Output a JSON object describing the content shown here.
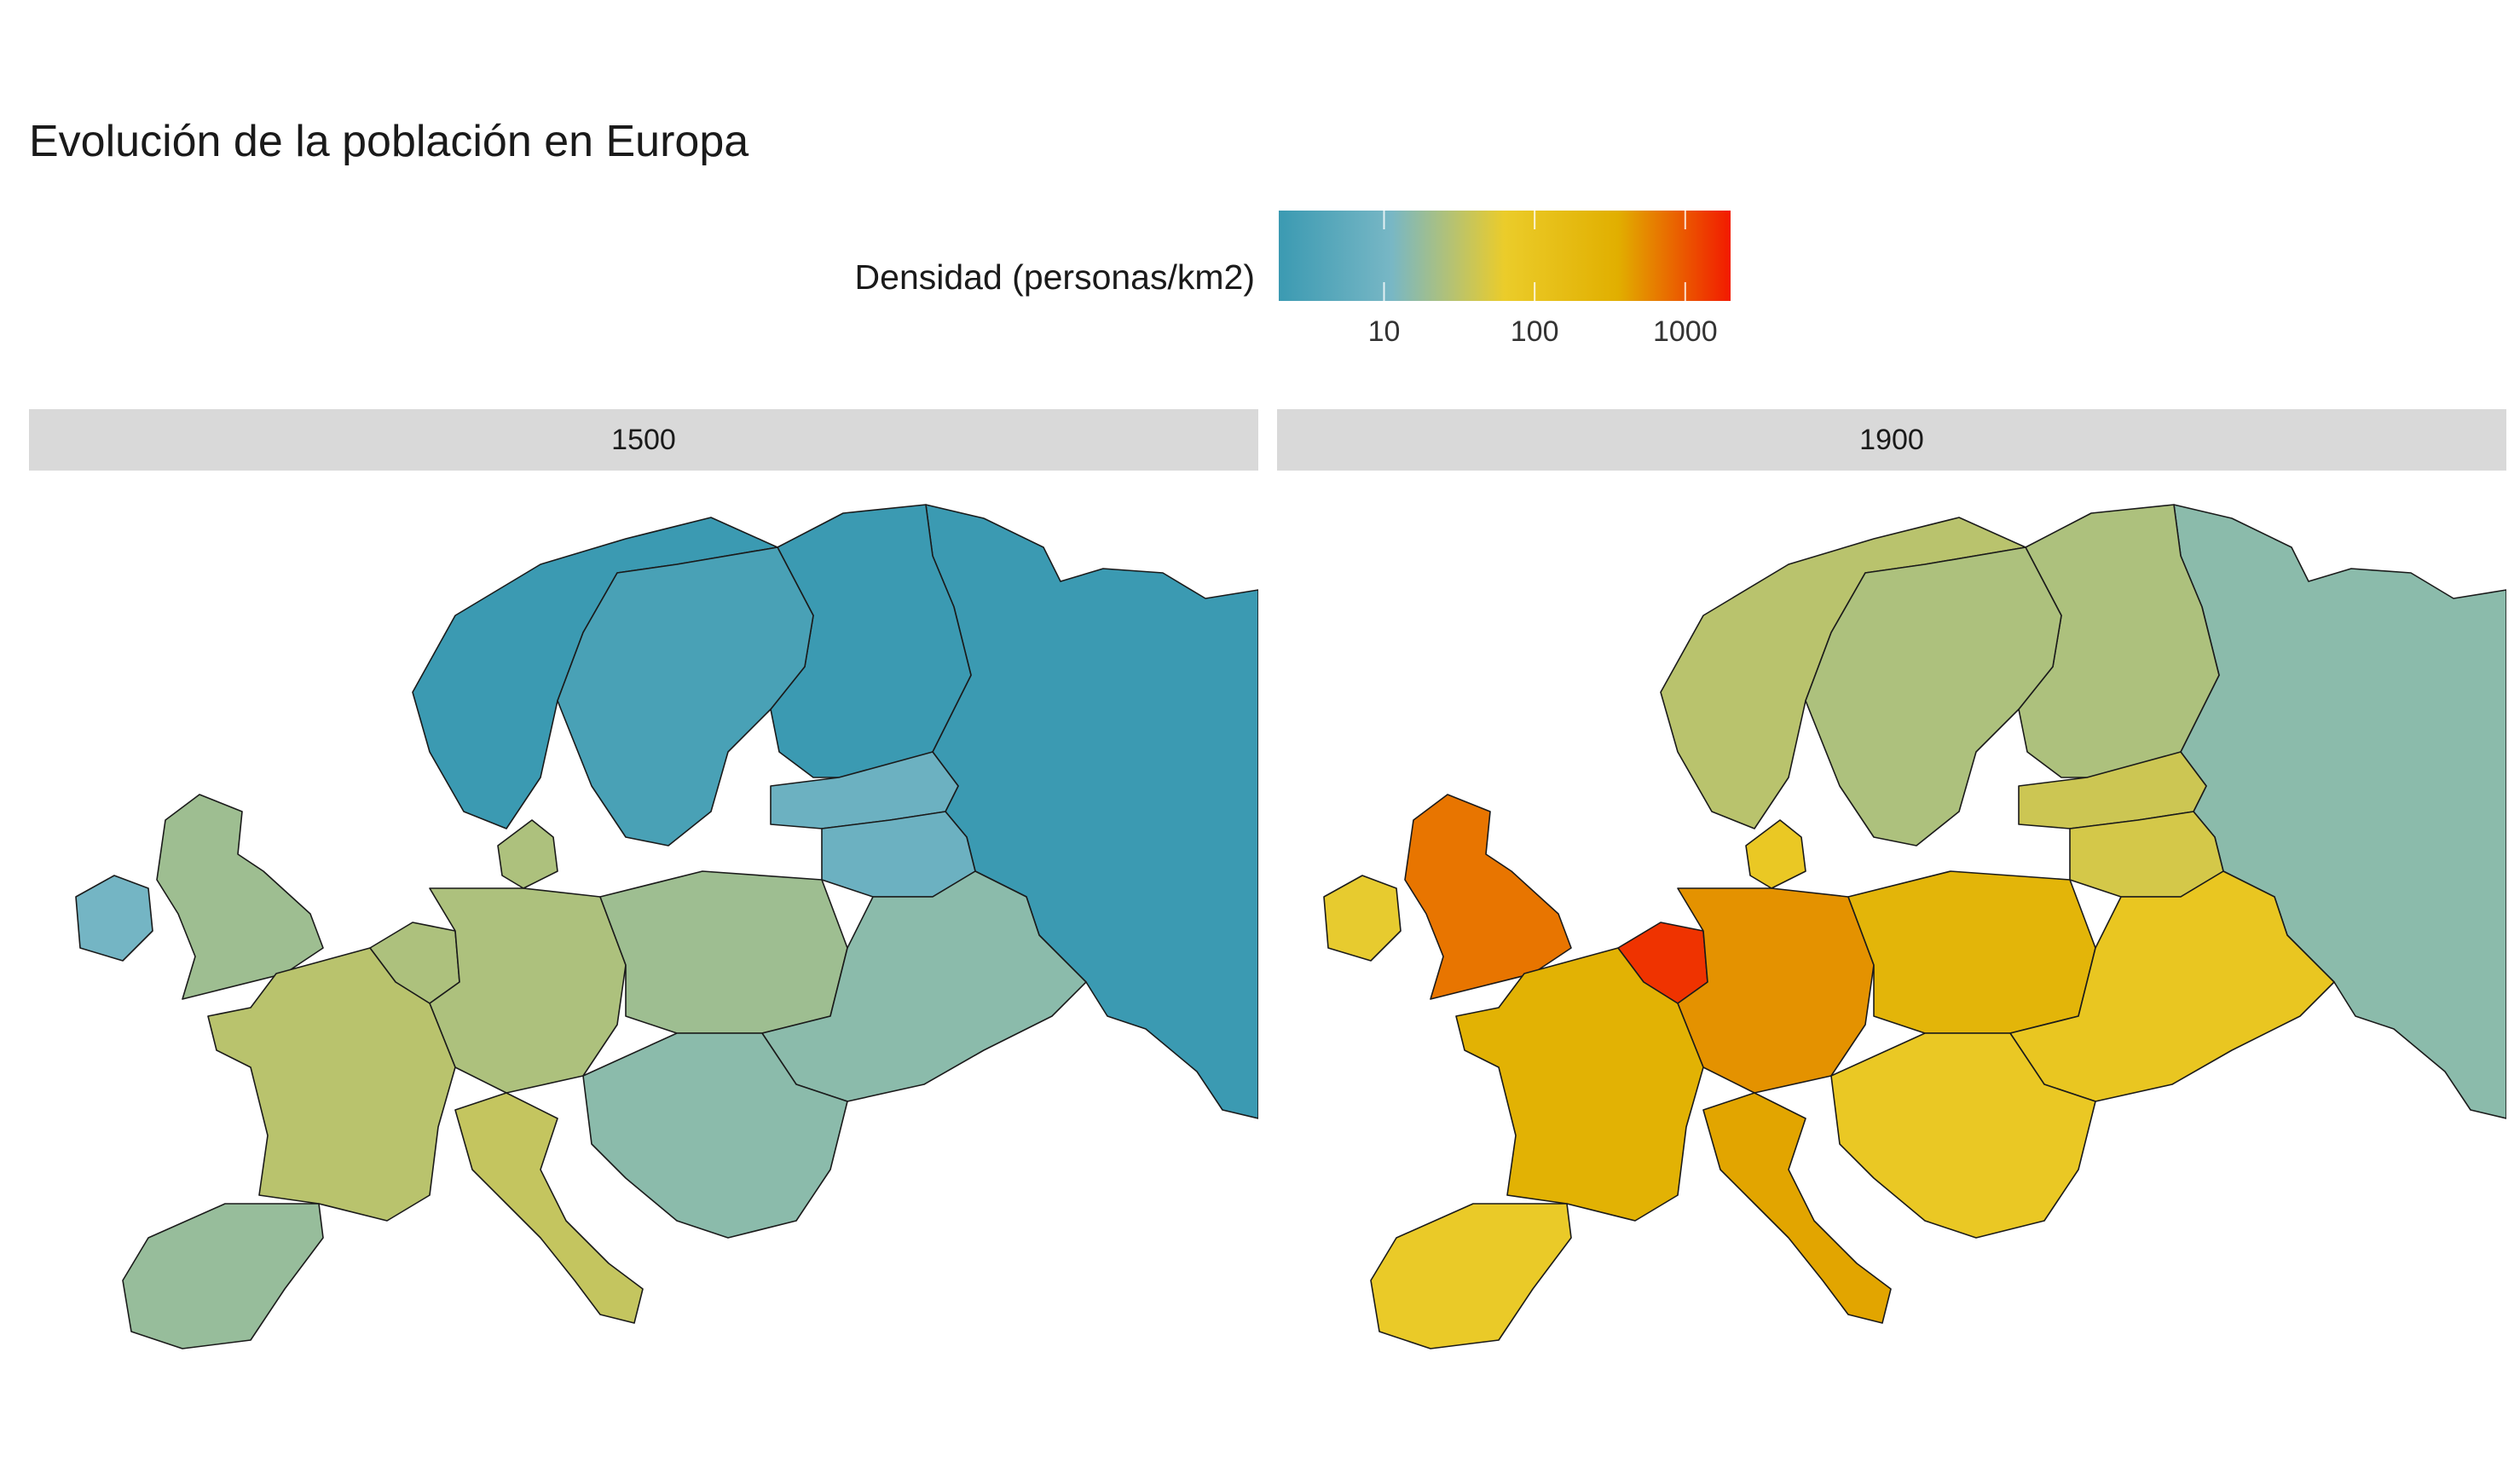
{
  "title": "Evolución de la población en Europa",
  "legend": {
    "title": "Densidad (personas/km2)",
    "scale": "log10",
    "ticks": [
      "10",
      "100",
      "1000"
    ],
    "tick_values": [
      10,
      100,
      1000
    ],
    "range": [
      2,
      2000
    ],
    "gradient": [
      "#3b9ab2",
      "#78b7c5",
      "#ebcc2a",
      "#e1af00",
      "#f21a00"
    ]
  },
  "colors": {
    "sea": "#ffffff",
    "border": "#1a1a1a",
    "strip": "#d9d9d9"
  },
  "chart_data": {
    "type": "choropleth",
    "panels": [
      {
        "label": "1500",
        "regions": [
          {
            "name": "Norway",
            "density": 2
          },
          {
            "name": "Sweden",
            "density": 3
          },
          {
            "name": "Finland",
            "density": 1
          },
          {
            "name": "Russia",
            "density": 2
          },
          {
            "name": "Baltics",
            "density": 8
          },
          {
            "name": "Belarus",
            "density": 8
          },
          {
            "name": "Ireland",
            "density": 10
          },
          {
            "name": "United Kingdom",
            "density": 20
          },
          {
            "name": "Denmark",
            "density": 25
          },
          {
            "name": "Germany",
            "density": 25
          },
          {
            "name": "Poland",
            "density": 20
          },
          {
            "name": "Ukraine",
            "density": 15
          },
          {
            "name": "France",
            "density": 30
          },
          {
            "name": "Iberia",
            "density": 18
          },
          {
            "name": "Italy",
            "density": 35
          },
          {
            "name": "Balkans",
            "density": 15
          }
        ]
      },
      {
        "label": "1900",
        "regions": [
          {
            "name": "Norway",
            "density": 30
          },
          {
            "name": "Sweden",
            "density": 25
          },
          {
            "name": "Finland",
            "density": 25
          },
          {
            "name": "Russia",
            "density": 15
          },
          {
            "name": "Baltics",
            "density": 40
          },
          {
            "name": "Belarus",
            "density": 45
          },
          {
            "name": "Ireland",
            "density": 60
          },
          {
            "name": "United Kingdom",
            "density": 700
          },
          {
            "name": "Denmark",
            "density": 80
          },
          {
            "name": "Germany",
            "density": 500
          },
          {
            "name": "Poland",
            "density": 250
          },
          {
            "name": "Ukraine",
            "density": 90
          },
          {
            "name": "France",
            "density": 300
          },
          {
            "name": "Iberia",
            "density": 70
          },
          {
            "name": "Italy",
            "density": 400
          },
          {
            "name": "Balkans",
            "density": 80
          },
          {
            "name": "Benelux",
            "density": 1500
          }
        ]
      }
    ]
  }
}
